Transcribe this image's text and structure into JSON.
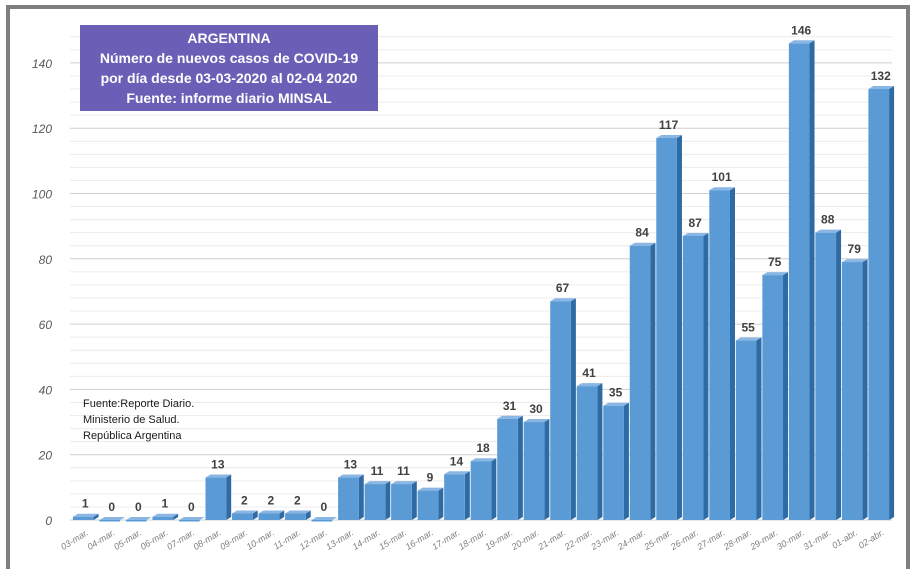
{
  "title_box": {
    "line1": "ARGENTINA",
    "line2": "Número de nuevos casos de COVID-19",
    "line3": "por día  desde 03-03-2020 al 02-04 2020",
    "line4": "Fuente: informe diario MINSAL"
  },
  "source_note": {
    "line1": "Fuente:Reporte Diario.",
    "line2": "Ministerio de Salud.",
    "line3": "República Argentina"
  },
  "chart_data": {
    "type": "bar",
    "title": "ARGENTINA Número de nuevos casos de COVID-19 por día  desde 03-03-2020 al 02-04 2020 Fuente: informe diario MINSAL",
    "xlabel": "",
    "ylabel": "",
    "categories": [
      "03-mar.",
      "04-mar.",
      "05-mar.",
      "06-mar.",
      "07-mar.",
      "08-mar.",
      "09-mar.",
      "10-mar.",
      "11-mar.",
      "12-mar.",
      "13-mar.",
      "14-mar.",
      "15-mar.",
      "16-mar.",
      "17-mar.",
      "18-mar.",
      "19-mar.",
      "20-mar.",
      "21-mar.",
      "22-mar.",
      "23-mar.",
      "24-mar.",
      "25-mar.",
      "26-mar.",
      "27-mar.",
      "28-mar.",
      "29-mar.",
      "30-mar.",
      "31-mar.",
      "01-abr.",
      "02-abr."
    ],
    "values": [
      1,
      0,
      0,
      1,
      0,
      13,
      2,
      2,
      2,
      0,
      13,
      11,
      11,
      9,
      14,
      18,
      31,
      30,
      67,
      41,
      35,
      84,
      117,
      87,
      101,
      55,
      75,
      146,
      88,
      79,
      132
    ],
    "ylim": [
      0,
      150
    ],
    "yticks": [
      0,
      20,
      40,
      60,
      80,
      100,
      120,
      140
    ],
    "grid": true,
    "legend": "none",
    "colors": {
      "bar_front": "#5b9bd5",
      "bar_side": "#2e6aa3",
      "bar_top": "#8ab6e3",
      "grid": "#d9d9d9",
      "title_box_bg": "#6a5fb6"
    }
  }
}
